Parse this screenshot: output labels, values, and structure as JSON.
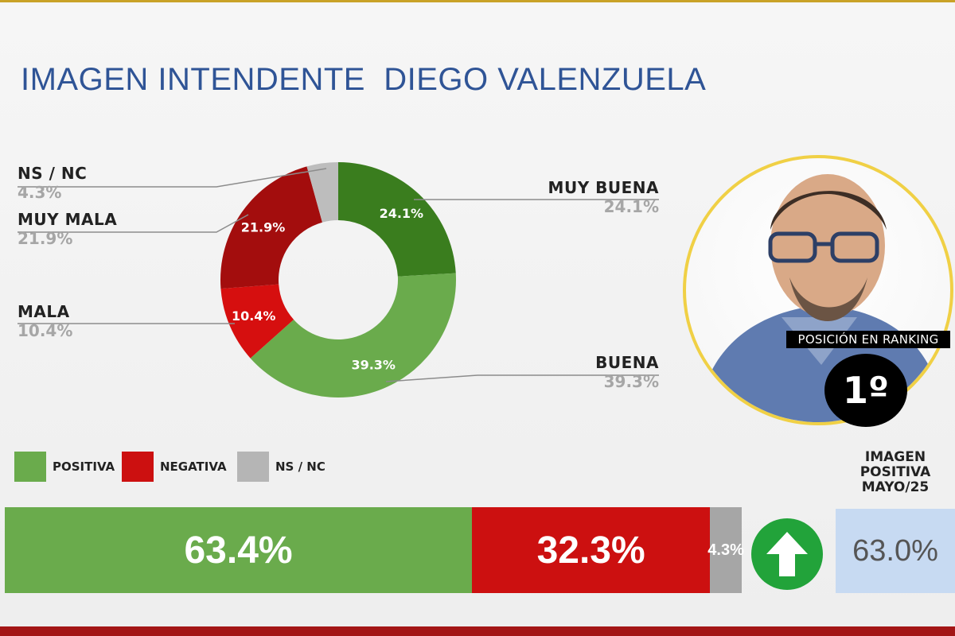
{
  "title": "IMAGEN INTENDENTE  DIEGO VALENZUELA",
  "chart_data": [
    {
      "type": "pie",
      "donut": true,
      "slices": [
        {
          "label": "MUY BUENA",
          "value": 24.1,
          "value_label": "24.1%",
          "color": "#3a7d1e"
        },
        {
          "label": "BUENA",
          "value": 39.3,
          "value_label": "39.3%",
          "color": "#6aab4c"
        },
        {
          "label": "MALA",
          "value": 10.4,
          "value_label": "10.4%",
          "color": "#d60f0f"
        },
        {
          "label": "MUY MALA",
          "value": 21.9,
          "value_label": "21.9%",
          "color": "#a30d0d"
        },
        {
          "label": "NS / NC",
          "value": 4.3,
          "value_label": "4.3%",
          "color": "#bdbdbd"
        }
      ]
    },
    {
      "type": "bar",
      "stacked": true,
      "orientation": "horizontal",
      "legend": [
        {
          "label": "POSITIVA",
          "color": "#6aab4c"
        },
        {
          "label": "NEGATIVA",
          "color": "#cc1010"
        },
        {
          "label": "NS / NC",
          "color": "#b5b5b5"
        }
      ],
      "series": [
        {
          "value": 63.4,
          "value_label": "63.4%",
          "color": "#6aab4c"
        },
        {
          "value": 32.3,
          "value_label": "32.3%",
          "color": "#cc1010"
        },
        {
          "value": 4.3,
          "value_label": "4.3%",
          "color": "#a6a6a6"
        }
      ]
    }
  ],
  "ranking": {
    "caption": "POSICIÓN EN RANKING",
    "position": "1º"
  },
  "comparison": {
    "caption": "IMAGEN POSITIVA MAYO/25",
    "value": "63.0%",
    "trend_icon": "up-arrow-icon",
    "trend_color": "#22a33a"
  }
}
